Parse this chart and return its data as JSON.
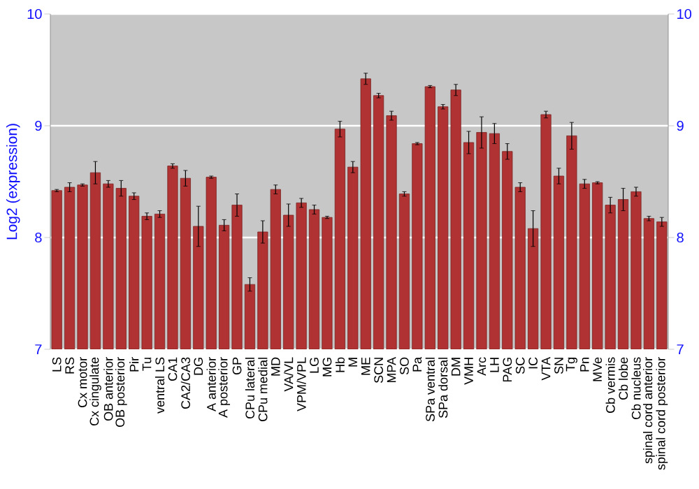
{
  "chart_data": {
    "type": "bar",
    "ylabel": "Log2 (expression)",
    "categories": [
      "LS",
      "RS",
      "Cx motor",
      "Cx cingulate",
      "OB anterior",
      "OB posterior",
      "Pir",
      "Tu",
      "ventral LS",
      "CA1",
      "CA2/CA3",
      "DG",
      "A anterior",
      "A posterior",
      "GP",
      "CPu lateral",
      "CPu medial",
      "MD",
      "VA/VL",
      "VPM/VPL",
      "LG",
      "MG",
      "Hb",
      "M",
      "ME",
      "SCN",
      "MPA",
      "SO",
      "Pa",
      "SPa ventral",
      "SPa dorsal",
      "DM",
      "VMH",
      "Arc",
      "LH",
      "PAG",
      "SC",
      "IC",
      "VTA",
      "SN",
      "Tg",
      "Pn",
      "MVe",
      "Cb vermis",
      "Cb lobe",
      "Cb nucleus",
      "spinal cord anterior",
      "spinal cord posterior"
    ],
    "values": [
      8.42,
      8.45,
      8.47,
      8.58,
      8.48,
      8.44,
      8.37,
      8.19,
      8.21,
      8.64,
      8.53,
      8.1,
      8.54,
      8.11,
      8.29,
      7.58,
      8.05,
      8.43,
      8.2,
      8.31,
      8.25,
      8.18,
      8.97,
      8.63,
      9.42,
      9.27,
      9.09,
      8.39,
      8.84,
      9.35,
      9.17,
      9.32,
      8.85,
      8.94,
      8.93,
      8.77,
      8.45,
      8.08,
      9.1,
      8.55,
      8.91,
      8.48,
      8.49,
      8.29,
      8.34,
      8.41,
      8.17,
      8.14
    ],
    "errors": [
      0.01,
      0.04,
      0.01,
      0.1,
      0.03,
      0.07,
      0.03,
      0.03,
      0.03,
      0.02,
      0.07,
      0.18,
      0.01,
      0.05,
      0.1,
      0.06,
      0.1,
      0.04,
      0.1,
      0.04,
      0.04,
      0.01,
      0.07,
      0.05,
      0.05,
      0.02,
      0.04,
      0.02,
      0.01,
      0.01,
      0.02,
      0.05,
      0.1,
      0.14,
      0.09,
      0.07,
      0.04,
      0.16,
      0.03,
      0.07,
      0.12,
      0.04,
      0.01,
      0.07,
      0.1,
      0.04,
      0.02,
      0.04
    ],
    "color": "#b03232",
    "ylim": [
      7,
      10
    ],
    "yticks": [
      7,
      8,
      9,
      10
    ],
    "y2lim": [
      7,
      10
    ],
    "y2ticks": [
      7,
      8,
      9,
      10
    ],
    "grid": "y"
  }
}
